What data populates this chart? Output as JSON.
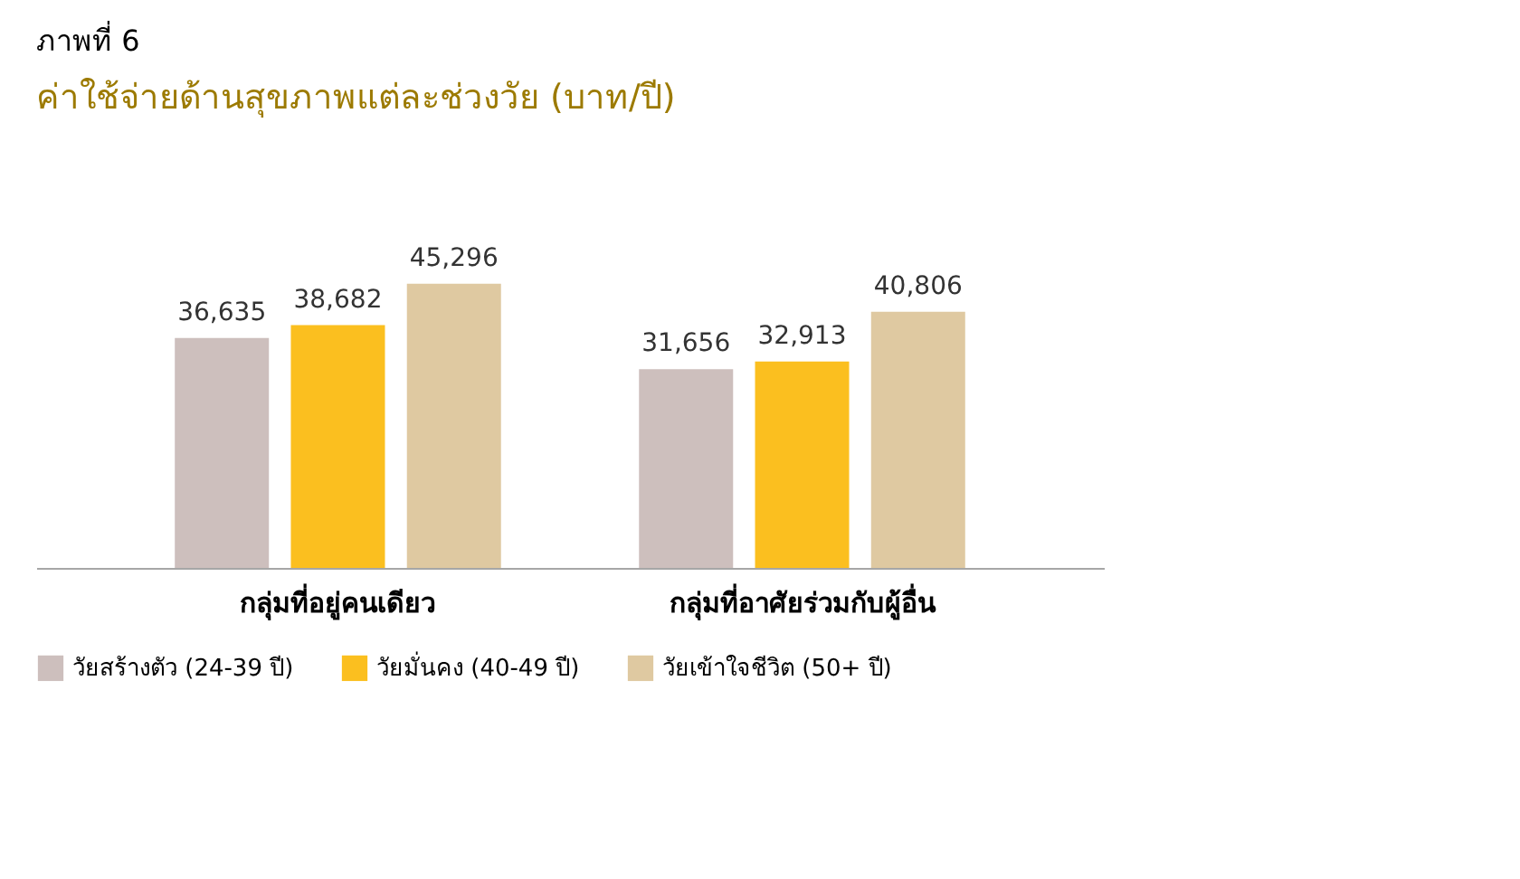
{
  "chart_data": {
    "type": "bar",
    "title": "ภาพที่ 6",
    "subtitle": "ค่าใช้จ่ายด้านสุขภาพแต่ละช่วงวัย (บาท/ปี)",
    "categories": [
      "กลุ่มที่อยู่คนเดียว",
      "กลุ่มที่อาศัยร่วมกับผู้อื่น"
    ],
    "series": [
      {
        "name": "วัยสร้างตัว (24-39 ปี)",
        "color": "#cdbfbd",
        "values": [
          36635,
          31656
        ],
        "value_labels": [
          "36,635",
          "31,656"
        ]
      },
      {
        "name": "วัยมั่นคง (40-49 ปี)",
        "color": "#fbbf1f",
        "values": [
          38682,
          32913
        ],
        "value_labels": [
          "38,682",
          "32,913"
        ]
      },
      {
        "name": "วัยเข้าใจชีวิต (50+ ปี)",
        "color": "#dfc9a1",
        "values": [
          45296,
          40806
        ],
        "value_labels": [
          "45,296",
          "40,806"
        ]
      }
    ],
    "legend": "bottom",
    "grid": false,
    "tick_labels": "x"
  }
}
